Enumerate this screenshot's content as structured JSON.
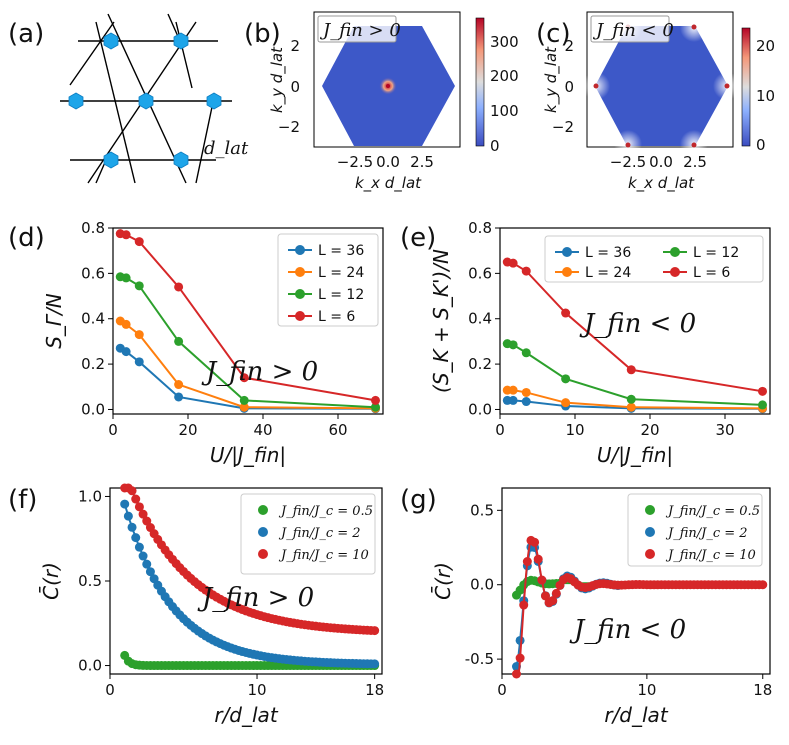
{
  "panels": {
    "a": {
      "label": "(a)",
      "lattice_label": "d_lat"
    },
    "b": {
      "label": "(b)",
      "inset": "J_fin > 0"
    },
    "c": {
      "label": "(c)",
      "inset": "J_fin < 0"
    },
    "d": {
      "label": "(d)"
    },
    "e": {
      "label": "(e)"
    },
    "f": {
      "label": "(f)"
    },
    "g": {
      "label": "(g)"
    }
  },
  "colors": {
    "L36": "#1f77b4",
    "L24": "#ff7f0e",
    "L12": "#2ca02c",
    "L6": "#d62728",
    "hex_fill": "#3b4cc0"
  },
  "chart_data": [
    {
      "id": "b",
      "type": "heatmap",
      "title": "J_fin > 0",
      "xlabel": "k_x d_lat",
      "ylabel": "k_y d_lat",
      "xticks": [
        "−2.5",
        "0.0",
        "2.5"
      ],
      "yticks": [
        "2",
        "0",
        "−2"
      ],
      "xlim": [
        -4.7,
        4.7
      ],
      "ylim": [
        -4.0,
        4.0
      ],
      "colorbar_ticks": [
        "300",
        "200",
        "100",
        "0"
      ],
      "colorbar_range": [
        0,
        350
      ],
      "peaks": [
        {
          "kx": 0,
          "ky": 0,
          "value": 350
        }
      ]
    },
    {
      "id": "c",
      "type": "heatmap",
      "title": "J_fin < 0",
      "xlabel": "k_x d_lat",
      "ylabel": "k_y d_lat",
      "xticks": [
        "−2.5",
        "0.0",
        "2.5"
      ],
      "yticks": [
        "2",
        "0",
        "−2"
      ],
      "xlim": [
        -4.7,
        4.7
      ],
      "ylim": [
        -4.0,
        4.0
      ],
      "colorbar_ticks": [
        "20",
        "10",
        "0"
      ],
      "colorbar_range": [
        -1,
        24
      ],
      "peaks": [
        {
          "kx": 4.19,
          "ky": 0,
          "value": 24
        },
        {
          "kx": -4.19,
          "ky": 0,
          "value": 24
        },
        {
          "kx": 2.09,
          "ky": 3.63,
          "value": 24
        },
        {
          "kx": -2.09,
          "ky": 3.63,
          "value": 24
        },
        {
          "kx": 2.09,
          "ky": -3.63,
          "value": 24
        },
        {
          "kx": -2.09,
          "ky": -3.63,
          "value": 24
        }
      ]
    },
    {
      "id": "d",
      "type": "line",
      "xlabel": "U/|J_fin|",
      "ylabel": "S_Γ/N",
      "xlim": [
        0,
        72
      ],
      "ylim": [
        -0.02,
        0.8
      ],
      "xticks": [
        0,
        20,
        40,
        60
      ],
      "yticks": [
        0.0,
        0.2,
        0.4,
        0.6,
        0.8
      ],
      "annotation": "J_fin > 0",
      "legend": [
        "L = 36",
        "L = 24",
        "L = 12",
        "L = 6"
      ],
      "series": [
        {
          "name": "L = 36",
          "color": "#1f77b4",
          "x": [
            1.94,
            3.5,
            7,
            17.5,
            35,
            70
          ],
          "y": [
            0.27,
            0.255,
            0.21,
            0.055,
            0.005,
            0.003
          ]
        },
        {
          "name": "L = 24",
          "color": "#ff7f0e",
          "x": [
            1.94,
            3.5,
            7,
            17.5,
            35,
            70
          ],
          "y": [
            0.39,
            0.375,
            0.33,
            0.11,
            0.01,
            0.005
          ]
        },
        {
          "name": "L = 12",
          "color": "#2ca02c",
          "x": [
            1.94,
            3.5,
            7,
            17.5,
            35,
            70
          ],
          "y": [
            0.585,
            0.58,
            0.545,
            0.3,
            0.04,
            0.01
          ]
        },
        {
          "name": "L = 6",
          "color": "#d62728",
          "x": [
            1.94,
            3.5,
            7,
            17.5,
            35,
            70
          ],
          "y": [
            0.775,
            0.77,
            0.74,
            0.54,
            0.14,
            0.04
          ]
        }
      ]
    },
    {
      "id": "e",
      "type": "line",
      "xlabel": "U/|J_fin|",
      "ylabel": "(S_K + S_K')/N",
      "xlim": [
        0,
        36
      ],
      "ylim": [
        -0.02,
        0.8
      ],
      "xticks": [
        0,
        10,
        20,
        30
      ],
      "yticks": [
        0.0,
        0.2,
        0.4,
        0.6,
        0.8
      ],
      "annotation": "J_fin < 0",
      "legend": [
        "L = 36",
        "L = 24",
        "L = 12",
        "L = 6"
      ],
      "series": [
        {
          "name": "L = 36",
          "color": "#1f77b4",
          "x": [
            0.97,
            1.75,
            3.5,
            8.75,
            17.5,
            35
          ],
          "y": [
            0.04,
            0.04,
            0.035,
            0.015,
            0.005,
            0.003
          ]
        },
        {
          "name": "L = 24",
          "color": "#ff7f0e",
          "x": [
            0.97,
            1.75,
            3.5,
            8.75,
            17.5,
            35
          ],
          "y": [
            0.085,
            0.085,
            0.075,
            0.03,
            0.01,
            0.005
          ]
        },
        {
          "name": "L = 12",
          "color": "#2ca02c",
          "x": [
            0.97,
            1.75,
            3.5,
            8.75,
            17.5,
            35
          ],
          "y": [
            0.29,
            0.285,
            0.25,
            0.135,
            0.045,
            0.02
          ]
        },
        {
          "name": "L = 6",
          "color": "#d62728",
          "x": [
            0.97,
            1.75,
            3.5,
            8.75,
            17.5,
            35
          ],
          "y": [
            0.65,
            0.645,
            0.61,
            0.425,
            0.175,
            0.08
          ]
        }
      ]
    },
    {
      "id": "f",
      "type": "scatter",
      "xlabel": "r/d_lat",
      "ylabel": "C̄(r)",
      "xlim": [
        0,
        18.5
      ],
      "ylim": [
        -0.05,
        1.05
      ],
      "xticks": [
        0,
        10,
        18
      ],
      "yticks": [
        0.0,
        0.5,
        1.0
      ],
      "annotation": "J_fin > 0",
      "legend": [
        "J_fin/J_c = 0.5",
        "J_fin/J_c = 2",
        "J_fin/J_c = 10"
      ],
      "series": [
        {
          "name": "J_fin/J_c = 0.5",
          "color": "#2ca02c",
          "model": "exp",
          "params": {
            "A": 0.06,
            "r0": 0.3,
            "C0": 0.0
          }
        },
        {
          "name": "J_fin/J_c = 2",
          "color": "#1f77b4",
          "model": "exp",
          "params": {
            "A": 0.95,
            "r0": 3.2,
            "C0": 0.005
          }
        },
        {
          "name": "J_fin/J_c = 10",
          "color": "#d62728",
          "model": "exp",
          "params": {
            "A": 0.95,
            "r0": 4.2,
            "C0": 0.19
          }
        }
      ]
    },
    {
      "id": "g",
      "type": "scatter",
      "xlabel": "r/d_lat",
      "ylabel": "C̄(r)",
      "xlim": [
        0,
        18.5
      ],
      "ylim": [
        -0.6,
        0.65
      ],
      "xticks": [
        0,
        10,
        18
      ],
      "yticks": [
        -0.5,
        0.0,
        0.5
      ],
      "annotation": "J_fin < 0",
      "legend": [
        "J_fin/J_c = 0.5",
        "J_fin/J_c = 2",
        "J_fin/J_c = 10"
      ],
      "series": [
        {
          "name": "J_fin/J_c = 0.5",
          "color": "#2ca02c",
          "model": "osc",
          "params": {
            "A": 0.08,
            "k": 2.6,
            "r0": 0.8,
            "C0": 0.01
          }
        },
        {
          "name": "J_fin/J_c = 2",
          "color": "#1f77b4",
          "model": "osc",
          "params": {
            "A": 0.55,
            "k": 2.6,
            "r0": 1.6,
            "C0": 0.0
          }
        },
        {
          "name": "J_fin/J_c = 10",
          "color": "#d62728",
          "model": "osc",
          "params": {
            "A": 0.75,
            "k": 2.6,
            "r0": 1.3,
            "C0": 0.0
          }
        }
      ]
    }
  ]
}
